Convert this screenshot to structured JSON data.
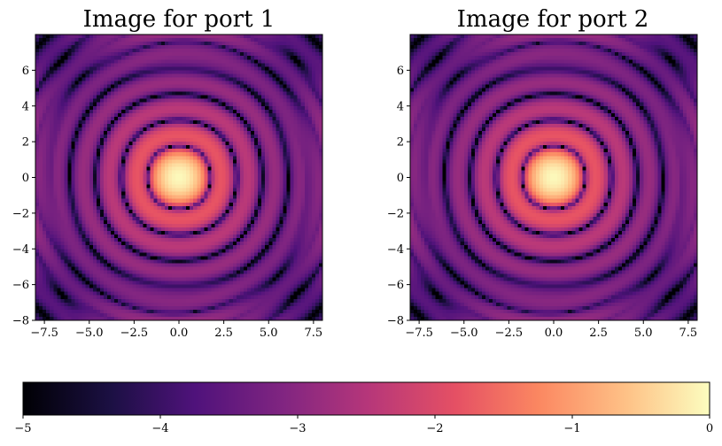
{
  "chart_data": [
    {
      "type": "heatmap",
      "title": "Image for port 1",
      "xlabel": "",
      "ylabel": "",
      "xlim": [
        -8,
        8
      ],
      "ylim": [
        -8,
        8
      ],
      "xticks": [
        -7.5,
        -5.0,
        -2.5,
        0.0,
        2.5,
        5.0,
        7.5
      ],
      "xtick_labels": [
        "−7.5",
        "−5.0",
        "−2.5",
        "0.0",
        "2.5",
        "5.0",
        "7.5"
      ],
      "yticks": [
        6,
        4,
        2,
        0,
        -2,
        -4,
        -6,
        -8
      ],
      "ytick_labels": [
        "6",
        "4",
        "2",
        "0",
        "−2",
        "−4",
        "−6",
        "−8"
      ],
      "colormap": "magma",
      "description_of_values": "log10 intensity; Airy-like pattern with bright center (~0) and concentric dark rings (~-5)"
    },
    {
      "type": "heatmap",
      "title": "Image for port 2",
      "xlabel": "",
      "ylabel": "",
      "xlim": [
        -8,
        8
      ],
      "ylim": [
        -8,
        8
      ],
      "xticks": [
        -7.5,
        -5.0,
        -2.5,
        0.0,
        2.5,
        5.0,
        7.5
      ],
      "xtick_labels": [
        "−7.5",
        "−5.0",
        "−2.5",
        "0.0",
        "2.5",
        "5.0",
        "7.5"
      ],
      "yticks": [
        6,
        4,
        2,
        0,
        -2,
        -4,
        -6,
        -8
      ],
      "ytick_labels": [
        "6",
        "4",
        "2",
        "0",
        "−2",
        "−4",
        "−6",
        "−8"
      ],
      "colormap": "magma",
      "description_of_values": "log10 intensity; Airy-like pattern with bright center (~0) and concentric dark rings (~-5)"
    }
  ],
  "colorbar": {
    "vmin": -5,
    "vmax": 0,
    "ticks": [
      -5,
      -4,
      -3,
      -2,
      -1,
      0
    ],
    "tick_labels": [
      "−5",
      "−4",
      "−3",
      "−2",
      "−1",
      "0"
    ],
    "colormap": "magma"
  }
}
